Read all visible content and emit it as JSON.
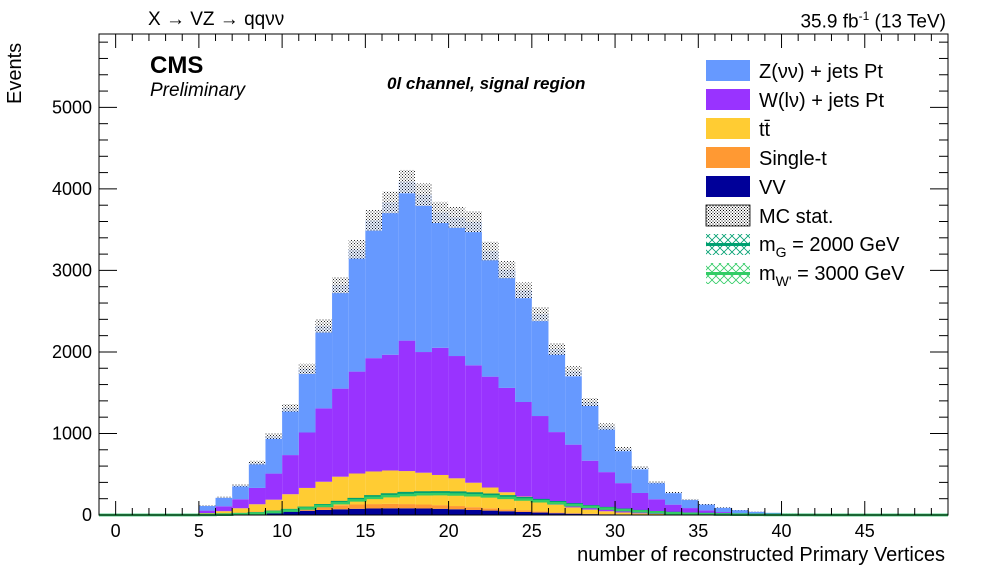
{
  "header": {
    "left": "X → VZ → qqνν",
    "lumi": "35.9 fb",
    "lumi_sup": "-1",
    "energy": "(13 TeV)"
  },
  "cms": {
    "label": "CMS",
    "sublabel": "Preliminary"
  },
  "region": "0l channel, signal region",
  "chart_data": {
    "type": "stacked-histogram",
    "title": "",
    "xlabel": "number of reconstructed Primary Vertices",
    "ylabel": "Events",
    "xlim": [
      -1,
      50
    ],
    "ylim": [
      0,
      5900
    ],
    "bin_width": 1,
    "x_ticks": [
      0,
      5,
      10,
      15,
      20,
      25,
      30,
      35,
      40,
      45
    ],
    "y_ticks": [
      0,
      1000,
      2000,
      3000,
      4000,
      5000
    ],
    "legend_position": "top-right",
    "bin_edges_start": 5,
    "stack": [
      {
        "name": "VV",
        "color": "#000099",
        "values": [
          4,
          8,
          14,
          22,
          32,
          42,
          52,
          62,
          70,
          76,
          80,
          82,
          82,
          80,
          76,
          70,
          62,
          54,
          46,
          38,
          30,
          22,
          16,
          11,
          8,
          5,
          3,
          2,
          1,
          1,
          0,
          0,
          0,
          0,
          0,
          0,
          0,
          0
        ]
      },
      {
        "name": "Single-t",
        "color": "#ff9933",
        "values": [
          5,
          9,
          14,
          20,
          26,
          33,
          40,
          46,
          50,
          53,
          54,
          54,
          52,
          49,
          45,
          40,
          34,
          28,
          23,
          18,
          14,
          10,
          7,
          5,
          3,
          2,
          1,
          1,
          0,
          0,
          0,
          0,
          0,
          0,
          0,
          0,
          0,
          0
        ]
      },
      {
        "name": "tt̄",
        "color": "#ffcc33",
        "values": [
          15,
          30,
          55,
          90,
          130,
          180,
          240,
          300,
          350,
          380,
          400,
          410,
          405,
          390,
          370,
          340,
          300,
          255,
          210,
          170,
          130,
          95,
          70,
          50,
          35,
          24,
          16,
          10,
          6,
          4,
          2,
          1,
          1,
          0,
          0,
          0,
          0,
          0
        ]
      },
      {
        "name": "W(lν) + jets Pt",
        "color": "#9933ff",
        "values": [
          30,
          60,
          110,
          200,
          320,
          480,
          680,
          900,
          1080,
          1250,
          1390,
          1420,
          1600,
          1480,
          1560,
          1500,
          1440,
          1360,
          1280,
          1160,
          1040,
          890,
          770,
          600,
          480,
          360,
          250,
          180,
          120,
          80,
          55,
          35,
          20,
          12,
          8,
          5,
          3,
          2
        ]
      },
      {
        "name": "Z(νν) + jets Pt",
        "color": "#6699ff",
        "values": [
          60,
          110,
          170,
          310,
          460,
          580,
          780,
          1010,
          1270,
          1500,
          1690,
          1870,
          1950,
          1930,
          1660,
          1700,
          1760,
          1540,
          1450,
          1370,
          1250,
          1020,
          900,
          720,
          560,
          420,
          310,
          210,
          150,
          105,
          75,
          55,
          40,
          28,
          20,
          13,
          8,
          5
        ]
      }
    ],
    "uncertainty": {
      "name": "MC stat.",
      "relative": 0.035
    },
    "signals": [
      {
        "name_main": "m",
        "name_sub": "G",
        "name_rest": " = 2000 GeV",
        "color": "#00a070",
        "values": [
          2,
          5,
          10,
          20,
          38,
          60,
          88,
          120,
          158,
          195,
          228,
          252,
          268,
          276,
          278,
          274,
          264,
          248,
          228,
          206,
          182,
          156,
          130,
          106,
          84,
          64,
          48,
          34,
          24,
          16,
          11,
          7,
          4,
          3,
          2,
          1,
          1,
          0
        ]
      },
      {
        "name_main": "m",
        "name_sub": "W'",
        "name_rest": " = 3000 GeV",
        "color": "#33cc66",
        "values": [
          2,
          5,
          9,
          18,
          34,
          54,
          80,
          110,
          146,
          180,
          210,
          232,
          246,
          254,
          256,
          252,
          242,
          228,
          210,
          190,
          168,
          144,
          120,
          98,
          78,
          60,
          44,
          32,
          22,
          15,
          10,
          6,
          4,
          2,
          1,
          1,
          0,
          0
        ]
      }
    ]
  }
}
